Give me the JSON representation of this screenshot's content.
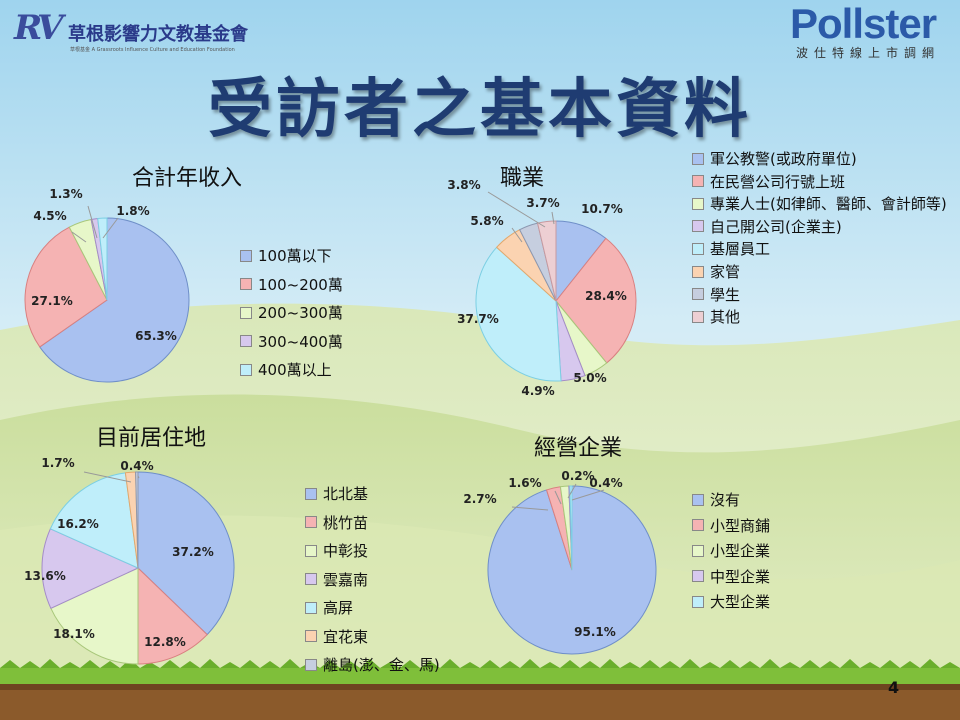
{
  "header": {
    "org_logo_mark": "RV",
    "org_logo_name": "草根影響力文教基金會",
    "org_logo_sub": "草根基金 A Grassroots Influence Culture and Education Foundation",
    "brand_logo": "Pollster",
    "brand_sub": "波仕特線上市調網"
  },
  "page_title": "受訪者之基本資料",
  "page_number": "4",
  "chart_data": [
    {
      "type": "pie",
      "title": "合計年收入",
      "categories": [
        "100萬以下",
        "100~200萬",
        "200~300萬",
        "300~400萬",
        "400萬以上"
      ],
      "values": [
        65.3,
        27.1,
        4.5,
        1.3,
        1.8
      ],
      "labels": [
        "65.3%",
        "27.1%",
        "4.5%",
        "1.3%",
        "1.8%"
      ],
      "colors": [
        "#a9c1f0",
        "#f5b3b3",
        "#e7f7c9",
        "#d7c8ee",
        "#bfeefa"
      ],
      "legend_position": "right"
    },
    {
      "type": "pie",
      "title": "職業",
      "categories": [
        "軍公教警(或政府單位)",
        "在民營公司行號上班",
        "專業人士(如律師、醫師、會計師等)",
        "自己開公司(企業主)",
        "基層員工",
        "家管",
        "學生",
        "其他"
      ],
      "values": [
        10.7,
        28.4,
        5.0,
        4.9,
        37.7,
        5.8,
        3.8,
        3.7
      ],
      "labels": [
        "10.7%",
        "28.4%",
        "5.0%",
        "4.9%",
        "37.7%",
        "5.8%",
        "3.8%",
        "3.7%"
      ],
      "colors": [
        "#a9c1f0",
        "#f5b3b3",
        "#e7f7c9",
        "#d7c8ee",
        "#bfeefa",
        "#fbd3b1",
        "#c6cedf",
        "#edcfd3"
      ],
      "legend_position": "top-right"
    },
    {
      "type": "pie",
      "title": "目前居住地",
      "categories": [
        "北北基",
        "桃竹苗",
        "中彰投",
        "雲嘉南",
        "高屏",
        "宜花東",
        "離島(澎、金、馬)"
      ],
      "values": [
        37.2,
        12.8,
        18.1,
        13.6,
        16.2,
        1.7,
        0.4
      ],
      "labels": [
        "37.2%",
        "12.8%",
        "18.1%",
        "13.6%",
        "16.2%",
        "1.7%",
        "0.4%"
      ],
      "colors": [
        "#a9c1f0",
        "#f5b3b3",
        "#e7f7c9",
        "#d7c8ee",
        "#bfeefa",
        "#fbd3b1",
        "#c6cedf"
      ],
      "legend_position": "right"
    },
    {
      "type": "pie",
      "title": "經營企業",
      "categories": [
        "沒有",
        "小型商鋪",
        "小型企業",
        "中型企業",
        "大型企業"
      ],
      "values": [
        95.1,
        2.7,
        1.6,
        0.2,
        0.4
      ],
      "labels": [
        "95.1%",
        "2.7%",
        "1.6%",
        "0.2%",
        "0.4%"
      ],
      "colors": [
        "#a9c1f0",
        "#f5b3b3",
        "#e7f7c9",
        "#d7c8ee",
        "#bfeefa"
      ],
      "legend_position": "right"
    }
  ]
}
